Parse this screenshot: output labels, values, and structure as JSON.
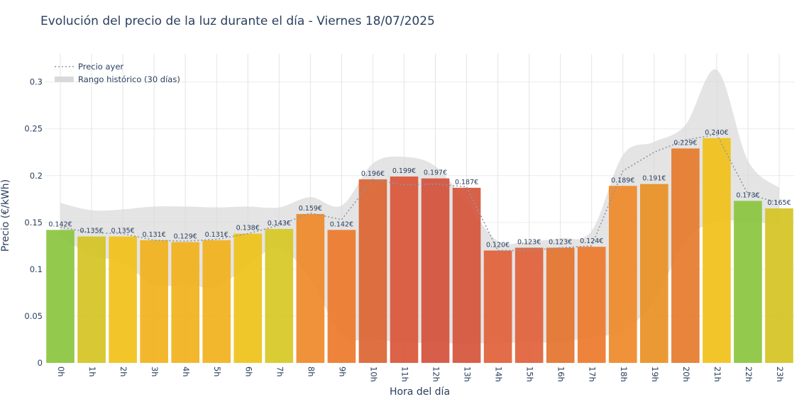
{
  "chart_data": {
    "type": "bar",
    "title": "Evolución del precio de la luz durante el día - Viernes 18/07/2025",
    "xlabel": "Hora del día",
    "ylabel": "Precio (€/kWh)",
    "ylim": [
      0,
      0.33
    ],
    "yticks": [
      0,
      0.05,
      0.1,
      0.15,
      0.2,
      0.25,
      0.3
    ],
    "ytick_labels": [
      "0",
      "0.05",
      "0.1",
      "0.15",
      "0.2",
      "0.25",
      "0.3"
    ],
    "grid": true,
    "legend_position": "top-left",
    "categories": [
      "0h",
      "1h",
      "2h",
      "3h",
      "4h",
      "5h",
      "6h",
      "7h",
      "8h",
      "9h",
      "10h",
      "11h",
      "12h",
      "13h",
      "14h",
      "15h",
      "16h",
      "17h",
      "18h",
      "19h",
      "20h",
      "21h",
      "22h",
      "23h"
    ],
    "values": [
      0.142,
      0.135,
      0.135,
      0.131,
      0.129,
      0.131,
      0.138,
      0.143,
      0.159,
      0.142,
      0.196,
      0.199,
      0.197,
      0.187,
      0.12,
      0.123,
      0.123,
      0.124,
      0.189,
      0.191,
      0.229,
      0.24,
      0.173,
      0.165
    ],
    "value_labels": [
      "0.142€",
      "0.135€",
      "0.135€",
      "0.131€",
      "0.129€",
      "0.131€",
      "0.138€",
      "0.143€",
      "0.159€",
      "0.142€",
      "0.196€",
      "0.199€",
      "0.197€",
      "0.187€",
      "0.120€",
      "0.123€",
      "0.123€",
      "0.124€",
      "0.189€",
      "0.191€",
      "0.229€",
      "0.240€",
      "0.173€",
      "0.165€"
    ],
    "bar_colors": [
      "#8bc63f",
      "#d4c425",
      "#f1c21b",
      "#f2b21e",
      "#f2b21e",
      "#f2b21e",
      "#efc31b",
      "#d6c826",
      "#ef8a2a",
      "#ed7b2d",
      "#dc6534",
      "#d9563a",
      "#d4533c",
      "#d5553b",
      "#e0623a",
      "#e0623a",
      "#e4742f",
      "#ed7b2d",
      "#ef8a2a",
      "#e99126",
      "#e47c2c",
      "#f1c21b",
      "#8bc63f",
      "#d4c425"
    ],
    "series": [
      {
        "name": "Precio ayer",
        "type": "line",
        "style": "dotted",
        "color": "#8a98a8",
        "values": [
          0.145,
          0.139,
          0.138,
          0.131,
          0.13,
          0.132,
          0.138,
          0.147,
          0.16,
          0.153,
          0.196,
          0.19,
          0.191,
          0.188,
          0.12,
          0.12,
          0.123,
          0.125,
          0.205,
          0.225,
          0.238,
          0.244,
          0.18,
          0.171
        ]
      },
      {
        "name": "Rango histórico (30 días)",
        "type": "band",
        "color": "#d9d9d9",
        "upper": [
          0.171,
          0.163,
          0.164,
          0.167,
          0.167,
          0.166,
          0.167,
          0.166,
          0.177,
          0.168,
          0.213,
          0.22,
          0.21,
          0.171,
          0.13,
          0.13,
          0.133,
          0.141,
          0.222,
          0.236,
          0.254,
          0.313,
          0.216,
          0.187
        ],
        "lower": [
          0.135,
          0.115,
          0.107,
          0.083,
          0.084,
          0.081,
          0.104,
          0.123,
          0.089,
          0.03,
          0.025,
          0.022,
          0.021,
          0.021,
          0.021,
          0.022,
          0.022,
          0.028,
          0.034,
          0.066,
          0.13,
          0.151,
          0.15,
          0.149
        ]
      }
    ]
  }
}
